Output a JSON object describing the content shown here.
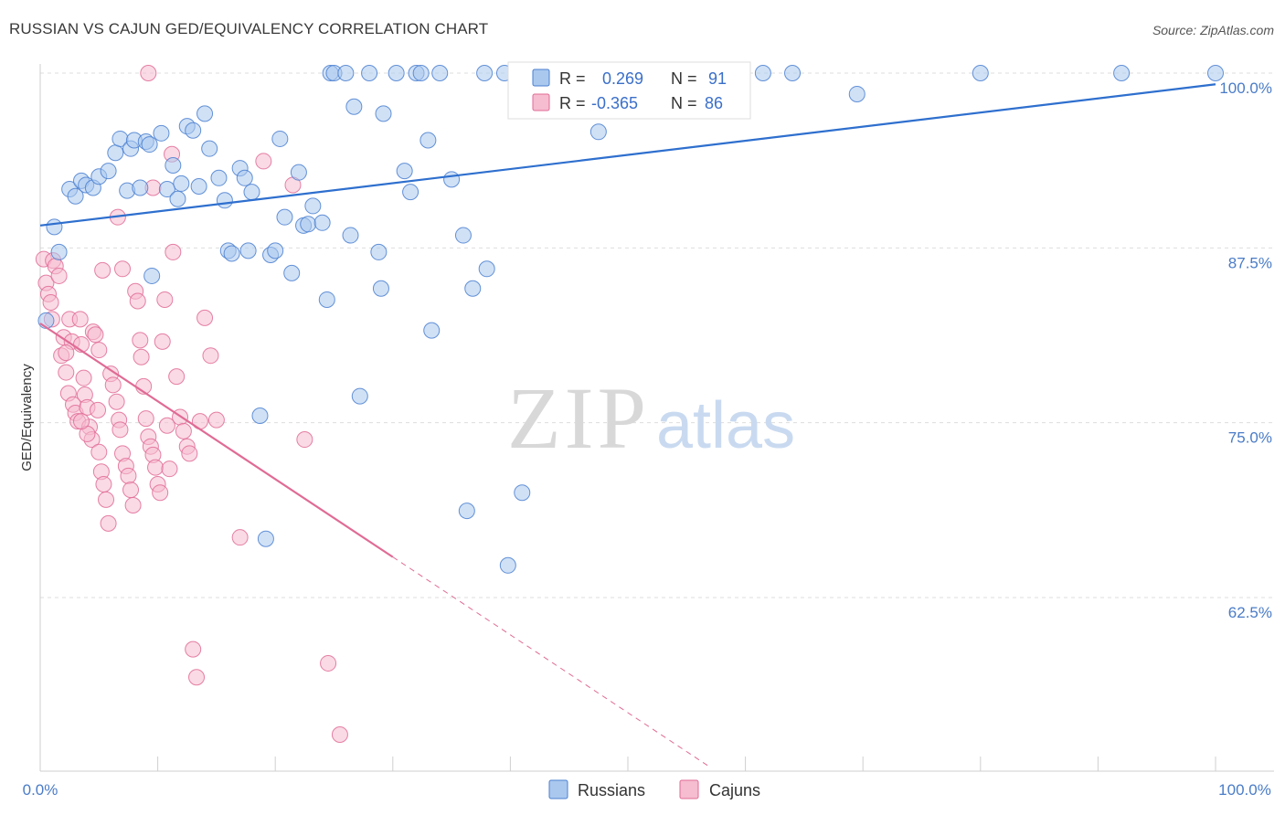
{
  "title": "RUSSIAN VS CAJUN GED/EQUIVALENCY CORRELATION CHART",
  "source": "Source: ZipAtlas.com",
  "watermark": {
    "zip": "ZIP",
    "atlas": "atlas"
  },
  "colors": {
    "blue": "#4a7fd0",
    "blue_fill": "#aac8ee",
    "blue_line": "#2e6fce",
    "pink": "#e06b95",
    "pink_fill": "#f6bcd0",
    "pink_line": "#e06b95",
    "tick_label": "#4a7cc7",
    "grid": "#dddddd"
  },
  "legend": {
    "r_label": "R =",
    "n_label": "N =",
    "series": [
      {
        "name": "Russians",
        "r": "0.269",
        "n": "91"
      },
      {
        "name": "Cajuns",
        "r": "-0.365",
        "n": "86"
      }
    ]
  },
  "chart_data": {
    "type": "scatter",
    "xlabel": "",
    "ylabel": "GED/Equivalency",
    "xlim": [
      0,
      100
    ],
    "ylim": [
      50,
      101.5
    ],
    "x_tick_labels": [
      "0.0%",
      "100.0%"
    ],
    "y_ticks": [
      62.5,
      75.0,
      87.5,
      100.0
    ],
    "y_tick_labels": [
      "62.5%",
      "75.0%",
      "87.5%",
      "100.0%"
    ],
    "series": [
      {
        "name": "Russians",
        "color": "#4a7fd0",
        "trend": {
          "x": [
            0,
            100
          ],
          "y": [
            89.1,
            99.2
          ],
          "dashed_to": 100
        },
        "points": [
          [
            0.5,
            82.3
          ],
          [
            1.2,
            89.0
          ],
          [
            1.6,
            87.2
          ],
          [
            2.5,
            91.7
          ],
          [
            3.0,
            91.2
          ],
          [
            3.5,
            92.3
          ],
          [
            3.9,
            92.0
          ],
          [
            4.5,
            91.8
          ],
          [
            5.0,
            92.6
          ],
          [
            5.8,
            93.0
          ],
          [
            6.4,
            94.3
          ],
          [
            6.8,
            95.3
          ],
          [
            7.4,
            91.6
          ],
          [
            7.7,
            94.6
          ],
          [
            8.0,
            95.2
          ],
          [
            8.5,
            91.8
          ],
          [
            9.0,
            95.1
          ],
          [
            9.3,
            94.9
          ],
          [
            9.5,
            85.5
          ],
          [
            10.3,
            95.7
          ],
          [
            10.8,
            91.7
          ],
          [
            11.3,
            93.4
          ],
          [
            11.7,
            91.0
          ],
          [
            12.0,
            92.1
          ],
          [
            12.5,
            96.2
          ],
          [
            13.0,
            95.9
          ],
          [
            13.5,
            91.9
          ],
          [
            14.0,
            97.1
          ],
          [
            14.4,
            94.6
          ],
          [
            15.2,
            92.5
          ],
          [
            15.7,
            90.9
          ],
          [
            16.0,
            87.3
          ],
          [
            16.3,
            87.1
          ],
          [
            17.0,
            93.2
          ],
          [
            17.4,
            92.5
          ],
          [
            17.7,
            87.3
          ],
          [
            18.0,
            91.5
          ],
          [
            18.7,
            75.5
          ],
          [
            19.2,
            66.7
          ],
          [
            19.6,
            87.0
          ],
          [
            20.0,
            87.3
          ],
          [
            20.4,
            95.3
          ],
          [
            20.8,
            89.7
          ],
          [
            21.4,
            85.7
          ],
          [
            22.0,
            92.9
          ],
          [
            22.4,
            89.1
          ],
          [
            22.8,
            89.2
          ],
          [
            23.2,
            90.5
          ],
          [
            24.0,
            89.3
          ],
          [
            24.4,
            83.8
          ],
          [
            24.7,
            100.0
          ],
          [
            25.0,
            100.0
          ],
          [
            26.0,
            100.0
          ],
          [
            26.4,
            88.4
          ],
          [
            26.7,
            97.6
          ],
          [
            27.2,
            76.9
          ],
          [
            28.0,
            100.0
          ],
          [
            28.8,
            87.2
          ],
          [
            29.0,
            84.6
          ],
          [
            29.2,
            97.1
          ],
          [
            30.3,
            100.0
          ],
          [
            31.0,
            93.0
          ],
          [
            31.5,
            91.5
          ],
          [
            32.0,
            100.0
          ],
          [
            32.4,
            100.0
          ],
          [
            33.0,
            95.2
          ],
          [
            33.3,
            81.6
          ],
          [
            34.0,
            100.0
          ],
          [
            35.0,
            92.4
          ],
          [
            36.0,
            88.4
          ],
          [
            36.3,
            68.7
          ],
          [
            36.8,
            84.6
          ],
          [
            37.8,
            100.0
          ],
          [
            38.0,
            86.0
          ],
          [
            39.5,
            100.0
          ],
          [
            39.8,
            64.8
          ],
          [
            40.5,
            100.0
          ],
          [
            41.0,
            70.0
          ],
          [
            44.5,
            100.0
          ],
          [
            46.0,
            100.0
          ],
          [
            47.5,
            95.8
          ],
          [
            49.0,
            100.0
          ],
          [
            50.5,
            100.0
          ],
          [
            59.5,
            100.0
          ],
          [
            61.5,
            100.0
          ],
          [
            64.0,
            100.0
          ],
          [
            69.5,
            98.5
          ],
          [
            80.0,
            100.0
          ],
          [
            92.0,
            100.0
          ],
          [
            100.0,
            100.0
          ]
        ]
      },
      {
        "name": "Cajuns",
        "color": "#e06b95",
        "trend": {
          "x": [
            0,
            30
          ],
          "y": [
            82.1,
            65.4
          ],
          "dashed_to": 56.8
        },
        "points": [
          [
            0.3,
            86.7
          ],
          [
            0.5,
            85.0
          ],
          [
            0.7,
            84.2
          ],
          [
            0.9,
            83.6
          ],
          [
            1.0,
            82.4
          ],
          [
            1.1,
            86.6
          ],
          [
            1.3,
            86.2
          ],
          [
            1.6,
            85.5
          ],
          [
            1.8,
            79.8
          ],
          [
            2.0,
            81.1
          ],
          [
            2.2,
            78.6
          ],
          [
            2.4,
            77.1
          ],
          [
            2.5,
            82.4
          ],
          [
            2.7,
            80.8
          ],
          [
            2.8,
            76.3
          ],
          [
            3.0,
            75.7
          ],
          [
            3.2,
            75.1
          ],
          [
            3.4,
            82.4
          ],
          [
            3.5,
            80.6
          ],
          [
            3.7,
            78.2
          ],
          [
            3.8,
            77.0
          ],
          [
            4.0,
            76.1
          ],
          [
            4.2,
            74.7
          ],
          [
            4.4,
            73.8
          ],
          [
            4.5,
            81.5
          ],
          [
            4.7,
            81.3
          ],
          [
            4.9,
            75.9
          ],
          [
            5.0,
            72.9
          ],
          [
            5.2,
            71.5
          ],
          [
            5.4,
            70.6
          ],
          [
            5.6,
            69.5
          ],
          [
            5.8,
            67.8
          ],
          [
            6.0,
            78.5
          ],
          [
            6.2,
            77.7
          ],
          [
            6.5,
            76.5
          ],
          [
            6.7,
            75.2
          ],
          [
            6.8,
            74.5
          ],
          [
            7.0,
            72.8
          ],
          [
            7.3,
            71.9
          ],
          [
            7.5,
            71.2
          ],
          [
            7.7,
            70.2
          ],
          [
            7.9,
            69.1
          ],
          [
            8.1,
            84.4
          ],
          [
            8.3,
            83.7
          ],
          [
            8.5,
            80.9
          ],
          [
            8.6,
            79.7
          ],
          [
            8.8,
            77.6
          ],
          [
            9.0,
            75.3
          ],
          [
            9.2,
            74.0
          ],
          [
            9.4,
            73.3
          ],
          [
            9.6,
            72.7
          ],
          [
            9.8,
            71.8
          ],
          [
            10.0,
            70.6
          ],
          [
            10.2,
            70.0
          ],
          [
            10.4,
            80.8
          ],
          [
            10.6,
            83.8
          ],
          [
            10.8,
            74.8
          ],
          [
            11.0,
            71.7
          ],
          [
            11.3,
            87.2
          ],
          [
            11.6,
            78.3
          ],
          [
            11.9,
            75.4
          ],
          [
            12.2,
            74.4
          ],
          [
            12.5,
            73.3
          ],
          [
            12.7,
            72.8
          ],
          [
            13.0,
            58.8
          ],
          [
            13.3,
            56.8
          ],
          [
            13.6,
            75.1
          ],
          [
            14.0,
            82.5
          ],
          [
            14.5,
            79.8
          ],
          [
            15.0,
            75.2
          ],
          [
            17.0,
            66.8
          ],
          [
            19.0,
            93.7
          ],
          [
            21.5,
            92.0
          ],
          [
            22.5,
            73.8
          ],
          [
            24.5,
            57.8
          ],
          [
            25.5,
            52.7
          ],
          [
            9.2,
            100.0
          ],
          [
            11.2,
            94.2
          ],
          [
            9.6,
            91.8
          ],
          [
            6.6,
            89.7
          ],
          [
            7.0,
            86.0
          ],
          [
            5.3,
            85.9
          ],
          [
            5.0,
            80.2
          ],
          [
            2.2,
            80.0
          ],
          [
            4.0,
            74.2
          ],
          [
            3.5,
            75.1
          ]
        ]
      }
    ]
  }
}
